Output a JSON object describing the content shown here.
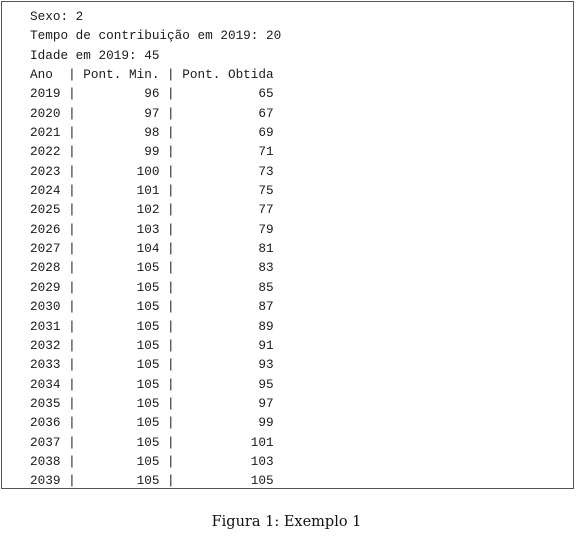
{
  "document": {
    "header_lines": [
      "Sexo: 2",
      "Tempo de contribuição em 2019: 20",
      "Idade em 2019: 45"
    ],
    "table": {
      "columns": [
        "Ano",
        "Pont. Min.",
        "Pont. Obtida"
      ],
      "rows": [
        [
          "2019",
          "96",
          "65"
        ],
        [
          "2020",
          "97",
          "67"
        ],
        [
          "2021",
          "98",
          "69"
        ],
        [
          "2022",
          "99",
          "71"
        ],
        [
          "2023",
          "100",
          "73"
        ],
        [
          "2024",
          "101",
          "75"
        ],
        [
          "2025",
          "102",
          "77"
        ],
        [
          "2026",
          "103",
          "79"
        ],
        [
          "2027",
          "104",
          "81"
        ],
        [
          "2028",
          "105",
          "83"
        ],
        [
          "2029",
          "105",
          "85"
        ],
        [
          "2030",
          "105",
          "87"
        ],
        [
          "2031",
          "105",
          "89"
        ],
        [
          "2032",
          "105",
          "91"
        ],
        [
          "2033",
          "105",
          "93"
        ],
        [
          "2034",
          "105",
          "95"
        ],
        [
          "2035",
          "105",
          "97"
        ],
        [
          "2036",
          "105",
          "99"
        ],
        [
          "2037",
          "105",
          "101"
        ],
        [
          "2038",
          "105",
          "103"
        ],
        [
          "2039",
          "105",
          "105"
        ]
      ]
    },
    "caption": "Figura 1: Exemplo 1"
  }
}
